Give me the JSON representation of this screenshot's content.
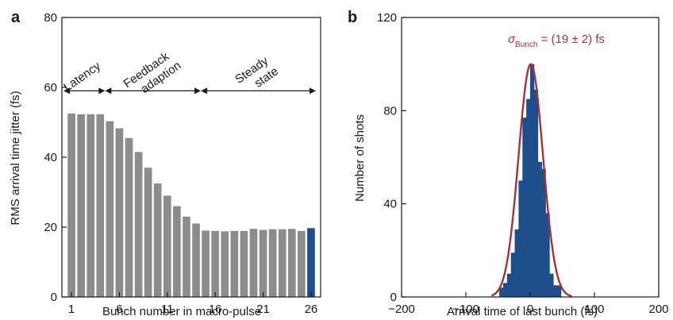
{
  "chart_data": [
    {
      "panel_label": "a",
      "type": "bar",
      "xlabel": "Bunch number in macro-pulse",
      "ylabel": "RMS arrival time jitter (fs)",
      "ylim": [
        0,
        80
      ],
      "xlim": [
        0,
        27
      ],
      "xticks": [
        1,
        6,
        11,
        16,
        21,
        26
      ],
      "yticks": [
        0,
        20,
        40,
        60,
        80
      ],
      "colors": {
        "bar": "#8c8c8c",
        "highlight": "#1f4e8c"
      },
      "highlight_x": 26,
      "series": [
        {
          "x": [
            1,
            2,
            3,
            4,
            5,
            6,
            7,
            8,
            9,
            10,
            11,
            12,
            13,
            14,
            15,
            16,
            17,
            18,
            19,
            20,
            21,
            22,
            23,
            24,
            25,
            26
          ],
          "values": [
            52.5,
            52.3,
            52.3,
            52.3,
            50.3,
            48.3,
            45.5,
            41.5,
            37.0,
            32.5,
            29.0,
            26.0,
            23.0,
            21.0,
            19.0,
            18.9,
            18.8,
            18.9,
            18.9,
            19.5,
            19.2,
            19.4,
            19.4,
            19.5,
            18.9,
            19.7
          ]
        }
      ],
      "annotations": [
        {
          "text": "Latency",
          "x_from": 0,
          "x_to": 4.5
        },
        {
          "text": "Feedback adaption",
          "x_from": 4.5,
          "x_to": 14.5
        },
        {
          "text": "Steady state",
          "x_from": 14.5,
          "x_to": 26.5
        }
      ],
      "annotation_arrow_y": 59
    },
    {
      "panel_label": "b",
      "type": "bar",
      "xlabel": "Arrival time of last bunch (fs)",
      "ylabel": "Number of shots",
      "xlim": [
        -200,
        200
      ],
      "ylim": [
        0,
        120
      ],
      "xticks": [
        -200,
        -100,
        0,
        100,
        200
      ],
      "yticks": [
        0,
        40,
        80,
        120
      ],
      "colors": {
        "bar": "#1f4e8c",
        "fit": "#a3323a"
      },
      "bin_width": 6,
      "series": [
        {
          "name": "histogram",
          "x": [
            -45,
            -39,
            -33,
            -27,
            -21,
            -15,
            -9,
            -3,
            3,
            9,
            15,
            21,
            27,
            33,
            39,
            45
          ],
          "values": [
            4,
            6,
            10,
            19,
            29,
            50,
            77,
            85,
            100,
            89,
            58,
            55,
            36,
            10,
            5,
            5
          ]
        },
        {
          "name": "Gaussian fit",
          "type": "line",
          "mu": 1,
          "sigma": 19,
          "amplitude": 100
        }
      ],
      "fit_label": {
        "sigma_symbol": "σ",
        "subscript": "Bunch",
        "value_text": " = (19 ± 2) fs"
      }
    }
  ]
}
